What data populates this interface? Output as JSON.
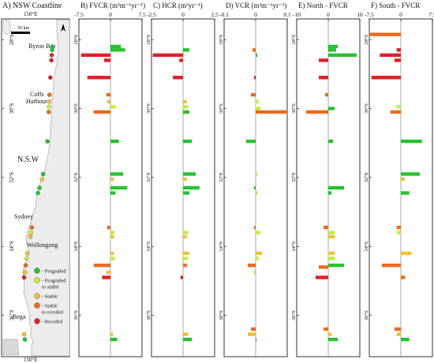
{
  "title": "",
  "legend": {
    "items": [
      {
        "label": "- Prograded",
        "color": "#27c22f"
      },
      {
        "label": "- Prograded to stable",
        "color": "#c5ee3a"
      },
      {
        "label": "- Stable",
        "color": "#f2bf3a"
      },
      {
        "label": "- Stable to receded",
        "color": "#ec6a1c"
      },
      {
        "label": "- Receded",
        "color": "#e21f26"
      }
    ]
  },
  "map": {
    "title": "A) NSW Coastline",
    "top_lon": "150°E",
    "bottom_lon": "150°E",
    "scale": "50 km",
    "lat_ticks": [
      "28°S",
      "30°S",
      "32°S",
      "34°S",
      "36°S"
    ],
    "places": [
      "Byron Bay",
      "Coffs Harbour",
      "N.S.W",
      "Sydney",
      "Wollongong",
      "Bega"
    ]
  },
  "chart_data": [
    {
      "type": "bar",
      "orientation": "horizontal",
      "title": "B) FVCR (m³m⁻¹yr⁻¹)",
      "xlim": [
        -7.5,
        7.5
      ],
      "ticks": [
        "-7.5",
        "0",
        "7.5"
      ],
      "ylim_lat": [
        -37.2,
        -27.4
      ],
      "bars": [
        {
          "lat": -28.2,
          "v": 2.5,
          "c": "#27c22f"
        },
        {
          "lat": -28.3,
          "v": 3.5,
          "c": "#27c22f"
        },
        {
          "lat": -28.45,
          "v": -7,
          "c": "#e21f26"
        },
        {
          "lat": -28.6,
          "v": -1.5,
          "c": "#e21f26"
        },
        {
          "lat": -29.1,
          "v": -5.5,
          "c": "#e21f26"
        },
        {
          "lat": -29.6,
          "v": -1,
          "c": "#ec6a1c"
        },
        {
          "lat": -29.8,
          "v": -0.8,
          "c": "#f2bf3a"
        },
        {
          "lat": -29.95,
          "v": 1.2,
          "c": "#c5ee3a"
        },
        {
          "lat": -30.1,
          "v": -4,
          "c": "#ec6a1c"
        },
        {
          "lat": -30.95,
          "v": 2,
          "c": "#27c22f"
        },
        {
          "lat": -31.9,
          "v": 3,
          "c": "#27c22f"
        },
        {
          "lat": -32.05,
          "v": 0.8,
          "c": "#f2bf3a"
        },
        {
          "lat": -32.3,
          "v": 4,
          "c": "#27c22f"
        },
        {
          "lat": -32.45,
          "v": 1.2,
          "c": "#27c22f"
        },
        {
          "lat": -33.45,
          "v": -0.8,
          "c": "#ec6a1c"
        },
        {
          "lat": -33.6,
          "v": 1,
          "c": "#c5ee3a"
        },
        {
          "lat": -33.72,
          "v": 0.8,
          "c": "#f2bf3a"
        },
        {
          "lat": -34.2,
          "v": 0.8,
          "c": "#f2bf3a"
        },
        {
          "lat": -34.35,
          "v": 1,
          "c": "#c5ee3a"
        },
        {
          "lat": -34.55,
          "v": -4,
          "c": "#ec6a1c"
        },
        {
          "lat": -34.75,
          "v": -1,
          "c": "#f2bf3a"
        },
        {
          "lat": -34.9,
          "v": -2,
          "c": "#e21f26"
        },
        {
          "lat": -36.55,
          "v": 0.6,
          "c": "#f2bf3a"
        },
        {
          "lat": -36.7,
          "v": 1.6,
          "c": "#27c22f"
        }
      ]
    },
    {
      "type": "bar",
      "orientation": "horizontal",
      "title": "C) HCR (m²yr⁻¹)",
      "xlim": [
        -2.5,
        2.5
      ],
      "ticks": [
        "-2.5",
        "0",
        "2.5"
      ],
      "ylim_lat": [
        -37.2,
        -27.4
      ],
      "bars": [
        {
          "lat": -28.3,
          "v": 0.5,
          "c": "#27c22f"
        },
        {
          "lat": -28.45,
          "v": -2.4,
          "c": "#e21f26"
        },
        {
          "lat": -28.6,
          "v": -0.3,
          "c": "#e21f26"
        },
        {
          "lat": -29.1,
          "v": -0.8,
          "c": "#e21f26"
        },
        {
          "lat": -29.8,
          "v": 0.3,
          "c": "#f2bf3a"
        },
        {
          "lat": -29.95,
          "v": 0.4,
          "c": "#c5ee3a"
        },
        {
          "lat": -30.1,
          "v": 0.5,
          "c": "#27c22f"
        },
        {
          "lat": -30.95,
          "v": 0.7,
          "c": "#27c22f"
        },
        {
          "lat": -31.9,
          "v": 1,
          "c": "#27c22f"
        },
        {
          "lat": -32.05,
          "v": 0.3,
          "c": "#f2bf3a"
        },
        {
          "lat": -32.3,
          "v": 1.3,
          "c": "#27c22f"
        },
        {
          "lat": -32.45,
          "v": 0.5,
          "c": "#27c22f"
        },
        {
          "lat": -33.6,
          "v": 0.4,
          "c": "#c5ee3a"
        },
        {
          "lat": -33.72,
          "v": 0.3,
          "c": "#f2bf3a"
        },
        {
          "lat": -34.2,
          "v": 0.5,
          "c": "#f2bf3a"
        },
        {
          "lat": -34.35,
          "v": 0.4,
          "c": "#c5ee3a"
        },
        {
          "lat": -34.55,
          "v": 0.3,
          "c": "#ec6a1c"
        },
        {
          "lat": -34.9,
          "v": -0.2,
          "c": "#e21f26"
        },
        {
          "lat": -36.55,
          "v": 0.4,
          "c": "#f2bf3a"
        },
        {
          "lat": -36.7,
          "v": 0.7,
          "c": "#27c22f"
        }
      ]
    },
    {
      "type": "bar",
      "orientation": "horizontal",
      "title": "D) VCR (m³m⁻¹yr⁻¹)",
      "xlim": [
        -0.1,
        0.1
      ],
      "ticks": [
        "-0.1",
        "0",
        "0.1"
      ],
      "ylim_lat": [
        -37.2,
        -27.4
      ],
      "bars": [
        {
          "lat": -28.3,
          "v": -0.01,
          "c": "#ec6a1c"
        },
        {
          "lat": -28.45,
          "v": 0.005,
          "c": "#27c22f"
        },
        {
          "lat": -29.1,
          "v": -0.005,
          "c": "#e21f26"
        },
        {
          "lat": -29.6,
          "v": -0.015,
          "c": "#ec6a1c"
        },
        {
          "lat": -29.8,
          "v": 0.01,
          "c": "#c5ee3a"
        },
        {
          "lat": -30.0,
          "v": 0.015,
          "c": "#c5ee3a"
        },
        {
          "lat": -30.1,
          "v": 0.1,
          "c": "#ec6a1c"
        },
        {
          "lat": -30.95,
          "v": -0.03,
          "c": "#27c22f"
        },
        {
          "lat": -31.9,
          "v": 0.005,
          "c": "#c5ee3a"
        },
        {
          "lat": -32.3,
          "v": -0.005,
          "c": "#27c22f"
        },
        {
          "lat": -32.45,
          "v": 0.005,
          "c": "#f2bf3a"
        },
        {
          "lat": -33.45,
          "v": -0.005,
          "c": "#ec6a1c"
        },
        {
          "lat": -33.6,
          "v": 0.015,
          "c": "#c5ee3a"
        },
        {
          "lat": -34.2,
          "v": 0.02,
          "c": "#f2bf3a"
        },
        {
          "lat": -34.35,
          "v": 0.01,
          "c": "#c5ee3a"
        },
        {
          "lat": -34.55,
          "v": -0.025,
          "c": "#ec6a1c"
        },
        {
          "lat": -34.75,
          "v": -0.005,
          "c": "#f2bf3a"
        },
        {
          "lat": -36.4,
          "v": -0.015,
          "c": "#ec6a1c"
        },
        {
          "lat": -36.55,
          "v": -0.025,
          "c": "#f2bf3a"
        },
        {
          "lat": -36.7,
          "v": 0.003,
          "c": "#27c22f"
        }
      ]
    },
    {
      "type": "bar",
      "orientation": "horizontal",
      "title": "E) North - FVCR",
      "xlim": [
        -10,
        10
      ],
      "ticks": [
        "-10",
        "0",
        "10"
      ],
      "ylim_lat": [
        -37.2,
        -27.4
      ],
      "bars": [
        {
          "lat": -28.2,
          "v": 3,
          "c": "#27c22f"
        },
        {
          "lat": -28.3,
          "v": 2.5,
          "c": "#27c22f"
        },
        {
          "lat": -28.45,
          "v": 9,
          "c": "#27c22f"
        },
        {
          "lat": -28.6,
          "v": -3,
          "c": "#e21f26"
        },
        {
          "lat": -29.1,
          "v": -3,
          "c": "#e21f26"
        },
        {
          "lat": -29.6,
          "v": -1,
          "c": "#ec6a1c"
        },
        {
          "lat": -30.1,
          "v": -7,
          "c": "#ec6a1c"
        },
        {
          "lat": -30.0,
          "v": 2,
          "c": "#27c22f"
        },
        {
          "lat": -30.95,
          "v": 1.5,
          "c": "#27c22f"
        },
        {
          "lat": -32.3,
          "v": 5,
          "c": "#27c22f"
        },
        {
          "lat": -32.45,
          "v": 1,
          "c": "#27c22f"
        },
        {
          "lat": -33.45,
          "v": -1.5,
          "c": "#ec6a1c"
        },
        {
          "lat": -33.6,
          "v": 2,
          "c": "#c5ee3a"
        },
        {
          "lat": -33.72,
          "v": 2,
          "c": "#f2bf3a"
        },
        {
          "lat": -34.2,
          "v": 2,
          "c": "#f2bf3a"
        },
        {
          "lat": -34.35,
          "v": 2,
          "c": "#c5ee3a"
        },
        {
          "lat": -34.55,
          "v": 5,
          "c": "#27c22f"
        },
        {
          "lat": -34.6,
          "v": -3,
          "c": "#ec6a1c"
        },
        {
          "lat": -34.9,
          "v": -4,
          "c": "#e21f26"
        },
        {
          "lat": -36.4,
          "v": -1.5,
          "c": "#ec6a1c"
        },
        {
          "lat": -36.55,
          "v": 1,
          "c": "#f2bf3a"
        },
        {
          "lat": -36.7,
          "v": 3,
          "c": "#27c22f"
        }
      ]
    },
    {
      "type": "bar",
      "orientation": "horizontal",
      "title": "F) South - FVCR",
      "xlim": [
        -7.5,
        7.5
      ],
      "ticks": [
        "-7.5",
        "0",
        "7.5"
      ],
      "ylim_lat": [
        -37.2,
        -27.4
      ],
      "bars": [
        {
          "lat": -27.85,
          "v": -7.5,
          "c": "#ec6a1c"
        },
        {
          "lat": -28.3,
          "v": -1,
          "c": "#e21f26"
        },
        {
          "lat": -28.45,
          "v": -5,
          "c": "#e21f26"
        },
        {
          "lat": -28.6,
          "v": -1.5,
          "c": "#e21f26"
        },
        {
          "lat": -29.1,
          "v": -7,
          "c": "#e21f26"
        },
        {
          "lat": -29.95,
          "v": -1,
          "c": "#c5ee3a"
        },
        {
          "lat": -30.1,
          "v": -2.5,
          "c": "#ec6a1c"
        },
        {
          "lat": -30.95,
          "v": 5,
          "c": "#27c22f"
        },
        {
          "lat": -31.9,
          "v": 4.5,
          "c": "#27c22f"
        },
        {
          "lat": -32.05,
          "v": 1,
          "c": "#f2bf3a"
        },
        {
          "lat": -32.45,
          "v": 2,
          "c": "#27c22f"
        },
        {
          "lat": -33.45,
          "v": -1,
          "c": "#ec6a1c"
        },
        {
          "lat": -33.6,
          "v": -1,
          "c": "#c5ee3a"
        },
        {
          "lat": -34.2,
          "v": 2.5,
          "c": "#f2bf3a"
        },
        {
          "lat": -34.55,
          "v": -4.5,
          "c": "#ec6a1c"
        },
        {
          "lat": -34.9,
          "v": 1,
          "c": "#ec6a1c"
        },
        {
          "lat": -36.4,
          "v": -1.5,
          "c": "#ec6a1c"
        },
        {
          "lat": -36.55,
          "v": -1,
          "c": "#f2bf3a"
        },
        {
          "lat": -36.7,
          "v": 2,
          "c": "#27c22f"
        }
      ]
    }
  ]
}
